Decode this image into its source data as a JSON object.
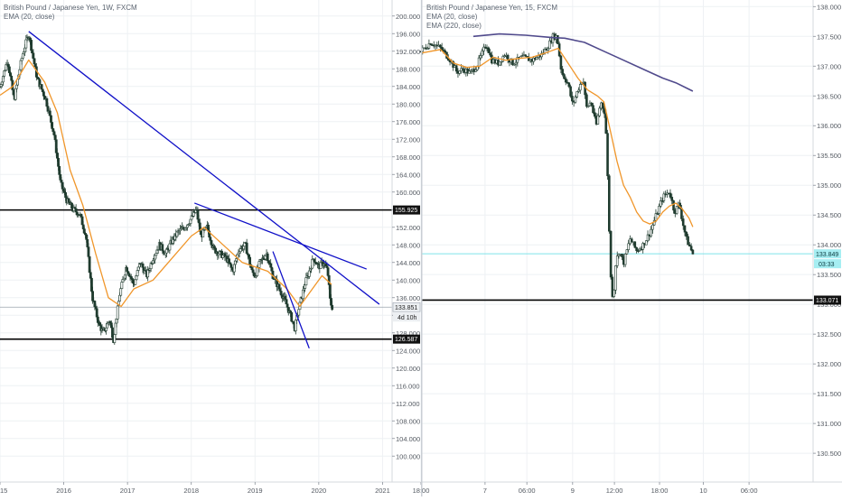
{
  "chart_data": [
    {
      "type": "candlestick",
      "title": "British Pound / Japanese Yen, 1W, FXCM",
      "indicators": [
        "EMA (20, close)"
      ],
      "yaxis": {
        "range": [
          98,
          202
        ],
        "ticks": [
          "200.000",
          "196.000",
          "192.000",
          "188.000",
          "184.000",
          "180.000",
          "176.000",
          "172.000",
          "168.000",
          "164.000",
          "160.000",
          "156.000",
          "152.000",
          "148.000",
          "144.000",
          "140.000",
          "136.000",
          "132.000",
          "128.000",
          "124.000",
          "120.000",
          "116.000",
          "112.000",
          "108.000",
          "104.000",
          "100.000"
        ],
        "side": "right"
      },
      "xaxis": {
        "range": [
          2015.0,
          2021.15
        ],
        "ticks": [
          "2015",
          "2016",
          "2017",
          "2018",
          "2019",
          "2020",
          "2021"
        ]
      },
      "price_path": [
        [
          2015.0,
          184
        ],
        [
          2015.12,
          190
        ],
        [
          2015.22,
          181
        ],
        [
          2015.35,
          191
        ],
        [
          2015.45,
          196
        ],
        [
          2015.58,
          186
        ],
        [
          2015.72,
          181
        ],
        [
          2015.85,
          173
        ],
        [
          2015.95,
          162
        ],
        [
          2016.05,
          158
        ],
        [
          2016.15,
          156
        ],
        [
          2016.25,
          155
        ],
        [
          2016.35,
          150
        ],
        [
          2016.45,
          136
        ],
        [
          2016.55,
          130
        ],
        [
          2016.62,
          128
        ],
        [
          2016.72,
          131
        ],
        [
          2016.78,
          126.5
        ],
        [
          2016.88,
          137
        ],
        [
          2016.98,
          143
        ],
        [
          2017.1,
          139
        ],
        [
          2017.2,
          144
        ],
        [
          2017.3,
          141
        ],
        [
          2017.4,
          145
        ],
        [
          2017.5,
          148
        ],
        [
          2017.6,
          146
        ],
        [
          2017.7,
          149
        ],
        [
          2017.8,
          151
        ],
        [
          2017.9,
          152
        ],
        [
          2018.0,
          154
        ],
        [
          2018.08,
          156
        ],
        [
          2018.15,
          150
        ],
        [
          2018.25,
          152
        ],
        [
          2018.35,
          147
        ],
        [
          2018.45,
          146
        ],
        [
          2018.55,
          145
        ],
        [
          2018.65,
          142
        ],
        [
          2018.75,
          147
        ],
        [
          2018.85,
          148
        ],
        [
          2018.95,
          142
        ],
        [
          2019.0,
          141
        ],
        [
          2019.08,
          144
        ],
        [
          2019.18,
          146
        ],
        [
          2019.28,
          141
        ],
        [
          2019.38,
          138
        ],
        [
          2019.48,
          135
        ],
        [
          2019.58,
          131
        ],
        [
          2019.62,
          129
        ],
        [
          2019.68,
          133
        ],
        [
          2019.78,
          139
        ],
        [
          2019.85,
          142
        ],
        [
          2019.92,
          145
        ],
        [
          2020.0,
          143
        ],
        [
          2020.08,
          144
        ],
        [
          2020.14,
          142
        ],
        [
          2020.18,
          135
        ],
        [
          2020.21,
          133.851
        ]
      ],
      "ema_path": [
        [
          2015.0,
          182
        ],
        [
          2015.2,
          184
        ],
        [
          2015.45,
          190
        ],
        [
          2015.7,
          185
        ],
        [
          2015.9,
          178
        ],
        [
          2016.1,
          165
        ],
        [
          2016.3,
          157
        ],
        [
          2016.5,
          146
        ],
        [
          2016.7,
          136
        ],
        [
          2016.9,
          134
        ],
        [
          2017.1,
          138
        ],
        [
          2017.4,
          140
        ],
        [
          2017.7,
          145
        ],
        [
          2018.0,
          150
        ],
        [
          2018.2,
          152
        ],
        [
          2018.5,
          148
        ],
        [
          2018.8,
          144
        ],
        [
          2019.0,
          143
        ],
        [
          2019.2,
          142
        ],
        [
          2019.5,
          138
        ],
        [
          2019.7,
          134
        ],
        [
          2019.9,
          138
        ],
        [
          2020.05,
          141
        ],
        [
          2020.2,
          139
        ]
      ],
      "trendlines": [
        {
          "from": [
            2015.45,
            196.5
          ],
          "to": [
            2020.95,
            134.5
          ]
        },
        {
          "from": [
            2018.05,
            157.5
          ],
          "to": [
            2020.75,
            142.5
          ]
        },
        {
          "from": [
            2019.28,
            146.5
          ],
          "to": [
            2019.85,
            124.5
          ]
        }
      ],
      "horizontal_levels": [
        {
          "value": 155.925,
          "label": "155.925"
        },
        {
          "value": 126.587,
          "label": "126.587"
        }
      ],
      "current_price": {
        "value": 133.851,
        "label": "133.851",
        "countdown": "4d 10h"
      }
    },
    {
      "type": "candlestick",
      "title": "British Pound / Japanese Yen, 15, FXCM",
      "indicators": [
        "EMA (20, close)",
        "EMA (220, close)"
      ],
      "yaxis": {
        "range": [
          130.35,
          138.05
        ],
        "ticks": [
          "138.000",
          "137.500",
          "137.000",
          "136.500",
          "136.000",
          "135.500",
          "135.000",
          "134.500",
          "134.000",
          "133.500",
          "133.000",
          "132.500",
          "132.000",
          "131.500",
          "131.000",
          "130.500"
        ],
        "side": "right"
      },
      "xaxis": {
        "range": [
          0,
          60
        ],
        "ticks": [
          "18:00",
          "7",
          "06:00",
          "9",
          "12:00",
          "18:00",
          "10",
          "06:00"
        ],
        "tick_positions": [
          0,
          9.8,
          16.2,
          23.2,
          29.6,
          36.5,
          43.2,
          50.2
        ]
      },
      "price_path": [
        [
          0,
          137.25
        ],
        [
          1.5,
          137.4
        ],
        [
          3,
          137.3
        ],
        [
          4.5,
          137.1
        ],
        [
          5.5,
          136.9
        ],
        [
          6.5,
          136.95
        ],
        [
          7.5,
          136.88
        ],
        [
          8.5,
          137.0
        ],
        [
          9.3,
          137.2
        ],
        [
          10.0,
          137.38
        ],
        [
          10.8,
          137.1
        ],
        [
          11.8,
          137.05
        ],
        [
          12.8,
          137.2
        ],
        [
          14,
          137.05
        ],
        [
          15.5,
          137.15
        ],
        [
          17,
          137.1
        ],
        [
          18.5,
          137.2
        ],
        [
          19.5,
          137.35
        ],
        [
          20.2,
          137.5
        ],
        [
          20.8,
          137.5
        ],
        [
          21.5,
          136.9
        ],
        [
          22.5,
          136.7
        ],
        [
          23.2,
          136.35
        ],
        [
          24,
          136.6
        ],
        [
          24.8,
          136.8
        ],
        [
          25.3,
          136.3
        ],
        [
          26,
          136.4
        ],
        [
          26.8,
          136.0
        ],
        [
          27.5,
          136.4
        ],
        [
          28.2,
          136.2
        ],
        [
          28.6,
          135.0
        ],
        [
          29.0,
          133.5
        ],
        [
          29.4,
          133.05
        ],
        [
          29.8,
          133.7
        ],
        [
          30.3,
          133.9
        ],
        [
          31,
          133.7
        ],
        [
          32,
          134.1
        ],
        [
          33,
          133.9
        ],
        [
          34,
          134.0
        ],
        [
          35,
          134.2
        ],
        [
          36,
          134.5
        ],
        [
          37,
          134.8
        ],
        [
          38,
          134.9
        ],
        [
          38.8,
          134.55
        ],
        [
          39.5,
          134.7
        ],
        [
          40.0,
          134.4
        ],
        [
          40.6,
          134.1
        ],
        [
          41.2,
          133.95
        ],
        [
          41.6,
          133.85
        ]
      ],
      "ema20_path": [
        [
          0,
          137.22
        ],
        [
          3,
          137.28
        ],
        [
          5,
          137.05
        ],
        [
          7,
          136.98
        ],
        [
          9,
          137.0
        ],
        [
          11,
          137.15
        ],
        [
          13,
          137.1
        ],
        [
          15,
          137.13
        ],
        [
          17,
          137.15
        ],
        [
          19,
          137.22
        ],
        [
          21,
          137.3
        ],
        [
          22.5,
          137.05
        ],
        [
          24,
          136.8
        ],
        [
          25.5,
          136.6
        ],
        [
          27,
          136.5
        ],
        [
          28,
          136.4
        ],
        [
          29,
          135.9
        ],
        [
          30,
          135.4
        ],
        [
          31,
          135.0
        ],
        [
          32,
          134.8
        ],
        [
          33,
          134.55
        ],
        [
          34,
          134.4
        ],
        [
          35,
          134.35
        ],
        [
          36,
          134.4
        ],
        [
          37,
          134.55
        ],
        [
          38,
          134.65
        ],
        [
          39,
          134.7
        ],
        [
          40,
          134.6
        ],
        [
          41,
          134.45
        ],
        [
          41.6,
          134.3
        ]
      ],
      "ema220_path": [
        [
          8,
          137.5
        ],
        [
          12,
          137.54
        ],
        [
          16,
          137.52
        ],
        [
          20,
          137.48
        ],
        [
          22,
          137.47
        ],
        [
          25,
          137.4
        ],
        [
          28,
          137.25
        ],
        [
          31,
          137.1
        ],
        [
          34,
          136.95
        ],
        [
          37,
          136.8
        ],
        [
          39,
          136.72
        ],
        [
          41.6,
          136.58
        ]
      ],
      "horizontal_levels": [
        {
          "value": 133.071,
          "label": "133.071"
        },
        {
          "value": 133.849,
          "label": "133.849",
          "style": "cyan"
        }
      ],
      "current_price": {
        "value": 133.849,
        "label": "133.849",
        "countdown": "03:33"
      }
    }
  ],
  "colors": {
    "candle": "#1f3b2e",
    "ema20": "#f0962a",
    "ema220": "#504a8c",
    "trendline": "#1010c8",
    "level": "#000000",
    "current_line": "#7fe3ea",
    "grid": "#eef1f4"
  }
}
